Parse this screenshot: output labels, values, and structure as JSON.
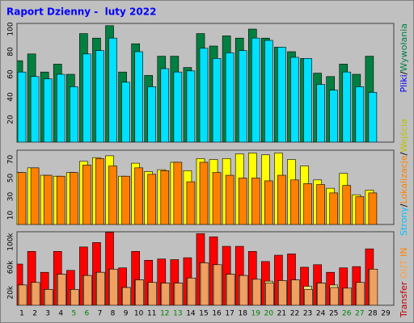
{
  "title": "Raport Dzienny -  luty 2022",
  "categories": [
    "1",
    "2",
    "3",
    "4",
    "5",
    "6",
    "7",
    "8",
    "9",
    "10",
    "11",
    "12",
    "13",
    "14",
    "15",
    "16",
    "17",
    "18",
    "19",
    "20",
    "21",
    "22",
    "23",
    "24",
    "25",
    "26",
    "27",
    "28",
    "29"
  ],
  "category_colors": [
    "#000000",
    "#000000",
    "#000000",
    "#000000",
    "#008000",
    "#008000",
    "#000000",
    "#000000",
    "#000000",
    "#000000",
    "#000000",
    "#008000",
    "#008000",
    "#000000",
    "#000000",
    "#000000",
    "#000000",
    "#000000",
    "#008000",
    "#008000",
    "#000000",
    "#000000",
    "#000000",
    "#000000",
    "#000000",
    "#008000",
    "#008000",
    "#000000",
    "#000000"
  ],
  "label_separator": "/",
  "chart_data": [
    {
      "type": "bar",
      "ylim": [
        0,
        105
      ],
      "yticks": [
        20,
        40,
        60,
        80,
        100
      ],
      "grid": false,
      "series": [
        {
          "name": "Wywołania",
          "color": "#008040",
          "values": [
            72,
            78,
            62,
            69,
            60,
            96,
            92,
            103,
            62,
            87,
            59,
            76,
            76,
            66,
            96,
            85,
            94,
            92,
            100,
            92,
            84,
            80,
            74,
            61,
            58,
            69,
            60,
            76,
            null
          ]
        },
        {
          "name": "Pliki",
          "color": "#00e0ff",
          "text_color": "#0000ff",
          "values": [
            62,
            58,
            56,
            60,
            49,
            78,
            81,
            92,
            53,
            80,
            49,
            65,
            62,
            63,
            83,
            74,
            79,
            81,
            92,
            90,
            84,
            75,
            74,
            51,
            46,
            62,
            49,
            44,
            null
          ]
        }
      ]
    },
    {
      "type": "bar",
      "ylim": [
        0,
        80
      ],
      "yticks": [
        10,
        30,
        50,
        70
      ],
      "grid": false,
      "series": [
        {
          "name": "Wejścia",
          "color": "#ffff00",
          "text_color": "#c0c000",
          "values": [
            56,
            61,
            53,
            52,
            56,
            68,
            72,
            74,
            52,
            66,
            57,
            59,
            67,
            58,
            71,
            70,
            71,
            76,
            77,
            75,
            77,
            70,
            63,
            48,
            39,
            55,
            32,
            37,
            null
          ]
        },
        {
          "name": "Lokalizacje",
          "color": "#ff8000",
          "values": [
            56,
            61,
            53,
            52,
            56,
            64,
            71,
            63,
            52,
            61,
            54,
            58,
            67,
            46,
            67,
            56,
            53,
            50,
            50,
            47,
            53,
            48,
            44,
            43,
            34,
            42,
            30,
            34,
            null
          ]
        }
      ],
      "extra_label": {
        "text": "Strony",
        "color": "#00c0ff"
      }
    },
    {
      "type": "bar",
      "ylim": [
        0,
        116000
      ],
      "yticks": [
        {
          "value": 20000,
          "label": "20k"
        },
        {
          "value": 60000,
          "label": "60k"
        },
        {
          "value": 100000,
          "label": "100k"
        }
      ],
      "grid": false,
      "series": [
        {
          "name": "Transfer",
          "color": "#ff0000",
          "text_color": "#c00000",
          "values": [
            65000,
            85000,
            52000,
            85000,
            55000,
            92000,
            99000,
            115000,
            59000,
            85000,
            71000,
            73000,
            72000,
            75000,
            113000,
            108000,
            93000,
            93000,
            85000,
            69000,
            79000,
            81000,
            60000,
            64000,
            52000,
            59000,
            61000,
            89000,
            null
          ]
        },
        {
          "name": "OUT",
          "color": "#e0e080",
          "text_color": "#ffa040",
          "values": [
            32000,
            36000,
            25000,
            49000,
            25000,
            47000,
            52000,
            57000,
            28000,
            40000,
            36000,
            35000,
            35000,
            43000,
            67000,
            64000,
            49000,
            47000,
            41000,
            38000,
            39000,
            40000,
            30000,
            35000,
            32000,
            27000,
            36000,
            57000,
            null
          ]
        },
        {
          "name": "IN",
          "color": "#f0a060",
          "text_color": "#ff8000",
          "values": [
            32000,
            36000,
            25000,
            49000,
            25000,
            47000,
            52000,
            57000,
            28000,
            40000,
            36000,
            35000,
            35000,
            43000,
            67000,
            64000,
            49000,
            47000,
            41000,
            35000,
            39000,
            40000,
            25000,
            35000,
            28000,
            27000,
            36000,
            57000,
            null
          ]
        }
      ]
    }
  ]
}
